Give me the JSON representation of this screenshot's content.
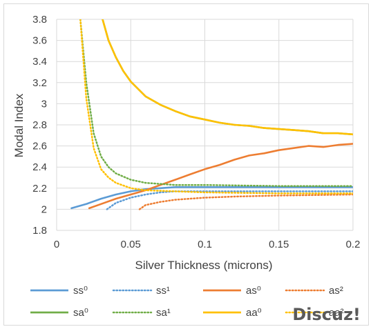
{
  "chart_data": {
    "type": "line",
    "title": "",
    "xlabel": "Silver Thickness (microns)",
    "ylabel": "Modal Index",
    "xlim": [
      0,
      0.2
    ],
    "ylim": [
      1.8,
      3.8
    ],
    "xticks": [
      "0",
      "0.05",
      "0.1",
      "0.15",
      "0.2"
    ],
    "yticks": [
      "1.8",
      "2",
      "2.2",
      "2.4",
      "2.6",
      "2.8",
      "3",
      "3.2",
      "3.4",
      "3.6",
      "3.8"
    ],
    "x_grid": true,
    "y_grid": true,
    "legend_position": "bottom",
    "series": [
      {
        "name": "ss⁰",
        "color": "#5b9bd5",
        "dash": "solid",
        "x": [
          0.01,
          0.02,
          0.03,
          0.04,
          0.05,
          0.06,
          0.07,
          0.08,
          0.09,
          0.1,
          0.12,
          0.15,
          0.2
        ],
        "y": [
          2.01,
          2.05,
          2.1,
          2.14,
          2.17,
          2.19,
          2.2,
          2.21,
          2.21,
          2.21,
          2.21,
          2.21,
          2.21
        ]
      },
      {
        "name": "ss¹",
        "color": "#5b9bd5",
        "dash": "dot",
        "x": [
          0.034,
          0.04,
          0.05,
          0.06,
          0.07,
          0.08,
          0.09,
          0.1,
          0.12,
          0.15,
          0.2
        ],
        "y": [
          2.0,
          2.06,
          2.11,
          2.14,
          2.16,
          2.17,
          2.17,
          2.17,
          2.17,
          2.17,
          2.17
        ]
      },
      {
        "name": "as⁰",
        "color": "#ed7d31",
        "dash": "solid",
        "x": [
          0.022,
          0.03,
          0.04,
          0.05,
          0.06,
          0.07,
          0.08,
          0.09,
          0.1,
          0.11,
          0.12,
          0.13,
          0.14,
          0.15,
          0.16,
          0.17,
          0.18,
          0.19,
          0.2
        ],
        "y": [
          2.01,
          2.05,
          2.1,
          2.14,
          2.18,
          2.23,
          2.28,
          2.33,
          2.38,
          2.42,
          2.47,
          2.51,
          2.53,
          2.56,
          2.58,
          2.6,
          2.59,
          2.61,
          2.62
        ]
      },
      {
        "name": "as²",
        "color": "#ed7d31",
        "dash": "dot",
        "x": [
          0.056,
          0.06,
          0.07,
          0.08,
          0.09,
          0.1,
          0.12,
          0.15,
          0.2
        ],
        "y": [
          2.0,
          2.04,
          2.07,
          2.09,
          2.1,
          2.11,
          2.12,
          2.13,
          2.14
        ]
      },
      {
        "name": "sa⁰",
        "color": "#70ad47",
        "dash": "solid",
        "x": [
          0.031,
          0.035,
          0.04,
          0.045,
          0.05,
          0.06,
          0.07,
          0.08,
          0.09,
          0.1,
          0.11,
          0.12,
          0.13,
          0.14,
          0.15,
          0.16,
          0.17,
          0.18,
          0.19,
          0.2
        ],
        "y": [
          3.8,
          3.6,
          3.44,
          3.31,
          3.21,
          3.07,
          2.99,
          2.93,
          2.88,
          2.85,
          2.82,
          2.8,
          2.79,
          2.77,
          2.76,
          2.75,
          2.74,
          2.72,
          2.72,
          2.71
        ]
      },
      {
        "name": "sa¹",
        "color": "#70ad47",
        "dash": "dot",
        "x": [
          0.016,
          0.02,
          0.025,
          0.03,
          0.035,
          0.04,
          0.05,
          0.06,
          0.08,
          0.1,
          0.15,
          0.2
        ],
        "y": [
          3.8,
          3.2,
          2.72,
          2.5,
          2.4,
          2.34,
          2.28,
          2.25,
          2.23,
          2.23,
          2.22,
          2.22
        ]
      },
      {
        "name": "aa⁰",
        "color": "#ffc000",
        "dash": "solid",
        "x": [
          0.031,
          0.035,
          0.04,
          0.045,
          0.05,
          0.06,
          0.07,
          0.08,
          0.09,
          0.1,
          0.11,
          0.12,
          0.13,
          0.14,
          0.15,
          0.16,
          0.17,
          0.18,
          0.19,
          0.2
        ],
        "y": [
          3.8,
          3.6,
          3.44,
          3.31,
          3.21,
          3.07,
          2.99,
          2.93,
          2.88,
          2.85,
          2.82,
          2.8,
          2.79,
          2.77,
          2.76,
          2.75,
          2.74,
          2.72,
          2.72,
          2.71
        ]
      },
      {
        "name": "aa²",
        "color": "#ffc000",
        "dash": "dot",
        "x": [
          0.016,
          0.02,
          0.025,
          0.03,
          0.035,
          0.04,
          0.05,
          0.06,
          0.08,
          0.1,
          0.15,
          0.2
        ],
        "y": [
          3.8,
          3.05,
          2.58,
          2.38,
          2.3,
          2.25,
          2.2,
          2.18,
          2.17,
          2.16,
          2.15,
          2.15
        ]
      }
    ]
  },
  "watermark": {
    "text": "Discuz!"
  }
}
